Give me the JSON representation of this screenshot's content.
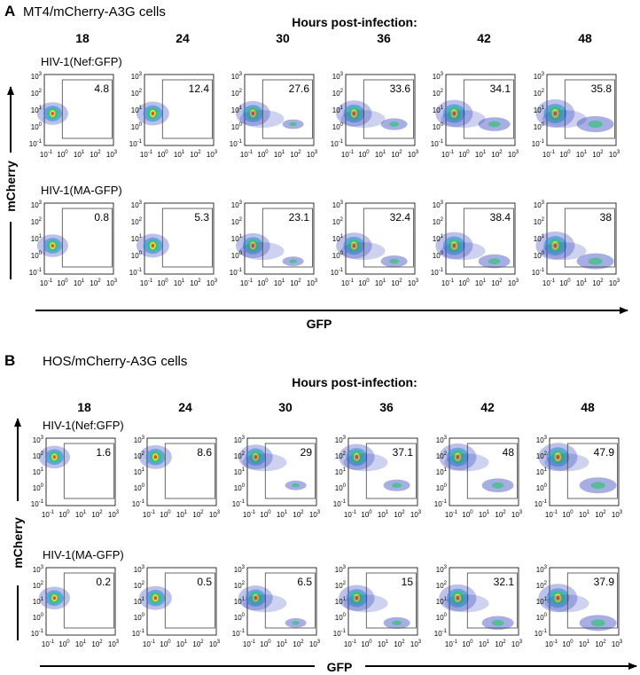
{
  "panels": [
    {
      "letter": "A",
      "title": "MT4/mCherry-A3G cells",
      "hours_heading": "Hours post-infection:",
      "hours": [
        18,
        24,
        30,
        36,
        42,
        48
      ],
      "y_axis_label": "mCherry",
      "x_axis_label": "GFP",
      "rows": [
        {
          "label": "HIV-1(Nef:GFP)",
          "gates": [
            4.8,
            12.4,
            27.6,
            33.6,
            34.1,
            35.8
          ]
        },
        {
          "label": "HIV-1(MA-GFP)",
          "gates": [
            0.8,
            5.3,
            23.1,
            32.4,
            38.4,
            38
          ]
        }
      ]
    },
    {
      "letter": "B",
      "title": "HOS/mCherry-A3G cells",
      "hours_heading": "Hours post-infection:",
      "hours": [
        18,
        24,
        30,
        36,
        42,
        48
      ],
      "y_axis_label": "mCherry",
      "x_axis_label": "GFP",
      "rows": [
        {
          "label": "HIV-1(Nef:GFP)",
          "gates": [
            1.6,
            8.6,
            29,
            37.1,
            48,
            47.9
          ]
        },
        {
          "label": "HIV-1(MA-GFP)",
          "gates": [
            0.2,
            0.5,
            6.5,
            15,
            32.1,
            37.9
          ]
        }
      ]
    }
  ],
  "axis_ticks": [
    {
      "base": "10",
      "exp": "-1"
    },
    {
      "base": "10",
      "exp": "0"
    },
    {
      "base": "10",
      "exp": "1"
    },
    {
      "base": "10",
      "exp": "2"
    },
    {
      "base": "10",
      "exp": "3"
    }
  ]
}
